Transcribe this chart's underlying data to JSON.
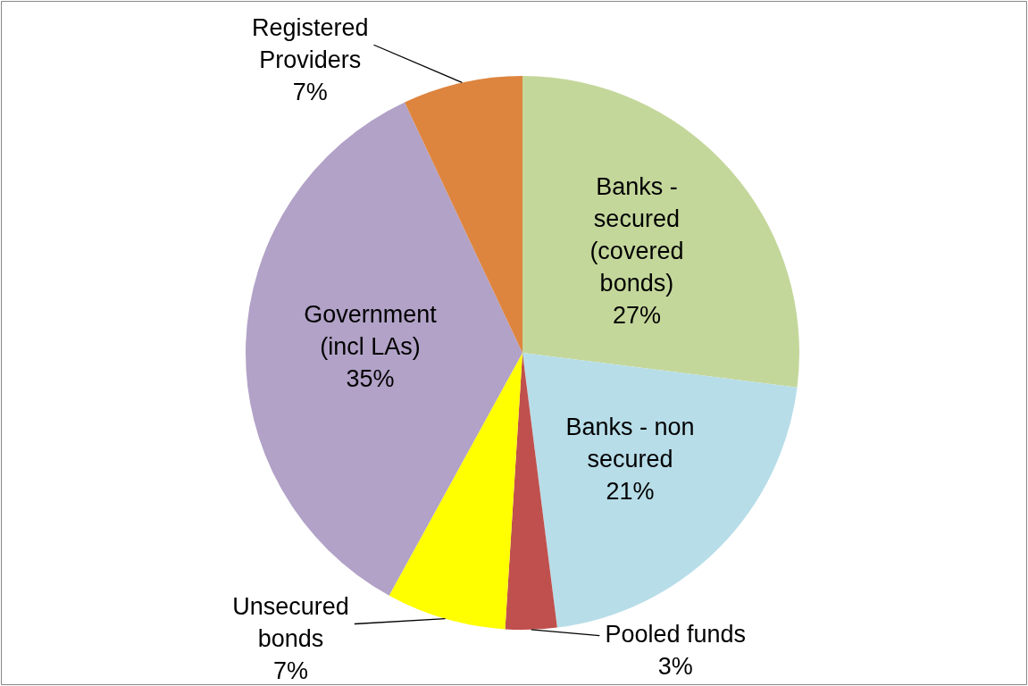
{
  "chart_data": {
    "type": "pie",
    "categories": [
      "Banks - secured (covered bonds)",
      "Banks - non secured",
      "Pooled funds",
      "Unsecured bonds",
      "Government (incl LAs)",
      "Registered Providers"
    ],
    "values": [
      27,
      21,
      3,
      7,
      35,
      7
    ],
    "value_labels": [
      "27%",
      "21%",
      "3%",
      "7%",
      "35%",
      "7%"
    ],
    "colors": [
      "#c4d79b",
      "#b7dde8",
      "#c0504d",
      "#ffff00",
      "#b2a2c7",
      "#dd843e"
    ],
    "legend": false
  }
}
